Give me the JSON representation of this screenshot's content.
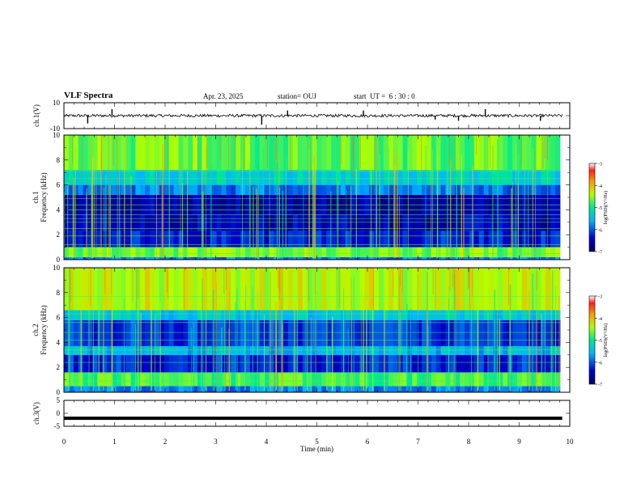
{
  "header": {
    "title": "VLF Spectra",
    "date": "Apr. 23, 2025",
    "station": "station= OUJ",
    "start": "start  UT =  6 : 30 : 0"
  },
  "chart_data": [
    {
      "type": "line",
      "name": "channel-1-waveform",
      "ylabel": "ch.1(V)",
      "ylim": [
        -10,
        10
      ],
      "yticks": [
        "10",
        "-10"
      ],
      "x_range": [
        0,
        10
      ],
      "baseline": 0,
      "spikes": [
        {
          "x": 0.47,
          "y": -6
        },
        {
          "x": 0.95,
          "y": 5
        },
        {
          "x": 3.91,
          "y": -7
        },
        {
          "x": 4.42,
          "y": 4
        },
        {
          "x": 5.92,
          "y": 4
        },
        {
          "x": 7.34,
          "y": -3
        },
        {
          "x": 7.8,
          "y": -4
        },
        {
          "x": 8.33,
          "y": 5
        },
        {
          "x": 9.42,
          "y": -4
        }
      ]
    },
    {
      "type": "heatmap",
      "name": "channel-1-spectrogram",
      "ylabel_line1": "ch.1",
      "ylabel_line2": "Frequency (kHz)",
      "ylim": [
        0,
        10
      ],
      "yticks": [
        "0",
        "2",
        "4",
        "6",
        "8",
        "10"
      ],
      "x_range": [
        0,
        10
      ],
      "colorbar": {
        "label": "log(PSD)(V²/Hz)",
        "range": [
          -7,
          -3
        ],
        "ticks": [
          "-3",
          "-4",
          "-5",
          "-6",
          "-7"
        ]
      },
      "bands": [
        {
          "f0": 0.0,
          "f1": 0.2,
          "level": 0.3
        },
        {
          "f0": 0.2,
          "f1": 1.0,
          "level": 0.6
        },
        {
          "f0": 1.0,
          "f1": 2.3,
          "level": 0.18
        },
        {
          "f0": 2.3,
          "f1": 3.6,
          "level": 0.12
        },
        {
          "f0": 3.6,
          "f1": 5.2,
          "level": 0.1
        },
        {
          "f0": 5.2,
          "f1": 6.0,
          "level": 0.28
        },
        {
          "f0": 6.0,
          "f1": 7.2,
          "level": 0.42
        },
        {
          "f0": 7.2,
          "f1": 10.0,
          "level": 0.58
        }
      ],
      "hlines_khz": [
        0.5,
        1.2,
        1.9,
        2.5,
        3.0,
        3.3,
        3.6,
        4.0,
        4.4,
        4.9,
        6.5,
        7.1
      ]
    },
    {
      "type": "heatmap",
      "name": "channel-2-spectrogram",
      "ylabel_line1": "ch.2",
      "ylabel_line2": "Frequency (kHz)",
      "ylim": [
        0,
        10
      ],
      "yticks": [
        "0",
        "2",
        "4",
        "6",
        "8",
        "10"
      ],
      "x_range": [
        0,
        10
      ],
      "colorbar": {
        "label": "log(PSD)(V²/Hz)",
        "range": [
          -7,
          -3
        ],
        "ticks": [
          "-3",
          "-4",
          "-5",
          "-6",
          "-7"
        ]
      },
      "bands": [
        {
          "f0": 0.0,
          "f1": 0.5,
          "level": 0.3
        },
        {
          "f0": 0.5,
          "f1": 1.6,
          "level": 0.55
        },
        {
          "f0": 1.6,
          "f1": 3.0,
          "level": 0.2
        },
        {
          "f0": 3.0,
          "f1": 3.7,
          "level": 0.36
        },
        {
          "f0": 3.7,
          "f1": 5.8,
          "level": 0.22
        },
        {
          "f0": 5.8,
          "f1": 6.6,
          "level": 0.4
        },
        {
          "f0": 6.6,
          "f1": 10.0,
          "level": 0.66
        }
      ],
      "hlines_khz": [
        0.9,
        1.5,
        2.4,
        3.4,
        4.2,
        4.8,
        5.6,
        6.3,
        7.7
      ]
    },
    {
      "type": "line",
      "name": "channel-3-waveform",
      "ylabel": "ch.3(V)",
      "ylim": [
        -5,
        5
      ],
      "yticks": [
        "5",
        "0",
        "-5"
      ],
      "x_range": [
        0,
        10
      ],
      "baseline": -1.9
    }
  ],
  "x_axis": {
    "label": "Time (min)",
    "ticks": [
      "0",
      "1",
      "2",
      "3",
      "4",
      "5",
      "6",
      "7",
      "8",
      "9",
      "10"
    ]
  }
}
